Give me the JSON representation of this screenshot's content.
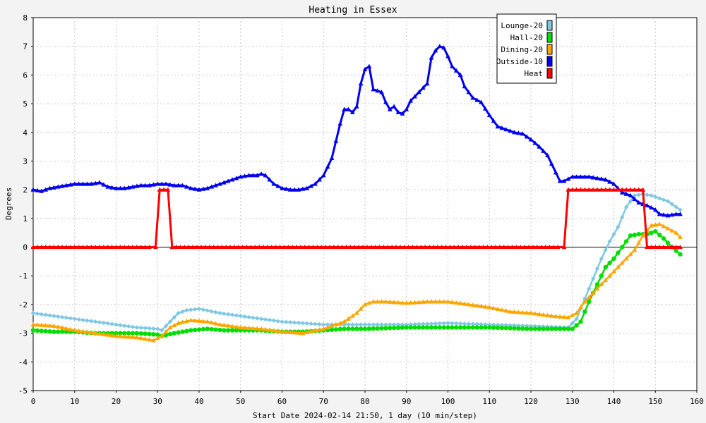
{
  "chart_data": {
    "type": "line",
    "title": "Heating in Essex",
    "xlabel": "Start Date 2024-02-14 21:50, 1 day (10 min/step)",
    "ylabel": "Degrees",
    "xlim": [
      0,
      160
    ],
    "ylim": [
      -5,
      8
    ],
    "x_ticks": [
      0,
      10,
      20,
      30,
      40,
      50,
      60,
      70,
      80,
      90,
      100,
      110,
      120,
      130,
      140,
      150,
      160
    ],
    "y_ticks": [
      -5,
      -4,
      -3,
      -2,
      -1,
      0,
      1,
      2,
      3,
      4,
      5,
      6,
      7,
      8
    ],
    "grid": true,
    "legend_position": "top-right",
    "series": [
      {
        "name": "Lounge-20",
        "color": "#7ec8e3",
        "marker": "diamond",
        "points": [
          [
            0,
            -2.3
          ],
          [
            5,
            -2.4
          ],
          [
            10,
            -2.5
          ],
          [
            15,
            -2.6
          ],
          [
            20,
            -2.7
          ],
          [
            25,
            -2.8
          ],
          [
            30,
            -2.85
          ],
          [
            31,
            -2.9
          ],
          [
            33,
            -2.6
          ],
          [
            35,
            -2.3
          ],
          [
            37,
            -2.2
          ],
          [
            40,
            -2.15
          ],
          [
            45,
            -2.3
          ],
          [
            50,
            -2.4
          ],
          [
            55,
            -2.5
          ],
          [
            60,
            -2.6
          ],
          [
            65,
            -2.65
          ],
          [
            70,
            -2.7
          ],
          [
            80,
            -2.7
          ],
          [
            90,
            -2.7
          ],
          [
            100,
            -2.65
          ],
          [
            110,
            -2.7
          ],
          [
            120,
            -2.75
          ],
          [
            129,
            -2.8
          ],
          [
            131,
            -2.5
          ],
          [
            133,
            -1.8
          ],
          [
            135,
            -1.1
          ],
          [
            137,
            -0.4
          ],
          [
            139,
            0.2
          ],
          [
            141,
            0.7
          ],
          [
            143,
            1.4
          ],
          [
            145,
            1.8
          ],
          [
            147,
            1.85
          ],
          [
            149,
            1.8
          ],
          [
            151,
            1.7
          ],
          [
            153,
            1.6
          ],
          [
            155,
            1.4
          ],
          [
            156,
            1.3
          ]
        ]
      },
      {
        "name": "Hall-20",
        "color": "#00dd00",
        "marker": "circle",
        "points": [
          [
            0,
            -2.9
          ],
          [
            5,
            -2.95
          ],
          [
            10,
            -2.95
          ],
          [
            15,
            -3.0
          ],
          [
            20,
            -3.0
          ],
          [
            25,
            -3.0
          ],
          [
            30,
            -3.05
          ],
          [
            31,
            -3.1
          ],
          [
            34,
            -3.0
          ],
          [
            38,
            -2.9
          ],
          [
            42,
            -2.85
          ],
          [
            46,
            -2.9
          ],
          [
            50,
            -2.9
          ],
          [
            55,
            -2.9
          ],
          [
            60,
            -2.95
          ],
          [
            65,
            -2.95
          ],
          [
            70,
            -2.9
          ],
          [
            75,
            -2.85
          ],
          [
            80,
            -2.85
          ],
          [
            90,
            -2.8
          ],
          [
            100,
            -2.8
          ],
          [
            110,
            -2.8
          ],
          [
            120,
            -2.85
          ],
          [
            125,
            -2.85
          ],
          [
            130,
            -2.85
          ],
          [
            132,
            -2.6
          ],
          [
            134,
            -1.9
          ],
          [
            136,
            -1.3
          ],
          [
            138,
            -0.7
          ],
          [
            140,
            -0.4
          ],
          [
            142,
            0.0
          ],
          [
            144,
            0.4
          ],
          [
            146,
            0.45
          ],
          [
            148,
            0.45
          ],
          [
            150,
            0.55
          ],
          [
            152,
            0.3
          ],
          [
            154,
            0.0
          ],
          [
            156,
            -0.25
          ]
        ]
      },
      {
        "name": "Dining-20",
        "color": "#ffa500",
        "marker": "triangle",
        "points": [
          [
            0,
            -2.7
          ],
          [
            5,
            -2.75
          ],
          [
            10,
            -2.9
          ],
          [
            15,
            -3.0
          ],
          [
            20,
            -3.1
          ],
          [
            25,
            -3.15
          ],
          [
            29,
            -3.25
          ],
          [
            31,
            -3.1
          ],
          [
            33,
            -2.8
          ],
          [
            35,
            -2.65
          ],
          [
            38,
            -2.55
          ],
          [
            42,
            -2.6
          ],
          [
            45,
            -2.7
          ],
          [
            50,
            -2.8
          ],
          [
            55,
            -2.85
          ],
          [
            60,
            -2.95
          ],
          [
            65,
            -3.0
          ],
          [
            70,
            -2.85
          ],
          [
            75,
            -2.6
          ],
          [
            78,
            -2.3
          ],
          [
            80,
            -2.0
          ],
          [
            82,
            -1.9
          ],
          [
            85,
            -1.9
          ],
          [
            90,
            -1.95
          ],
          [
            95,
            -1.9
          ],
          [
            100,
            -1.9
          ],
          [
            105,
            -2.0
          ],
          [
            110,
            -2.1
          ],
          [
            115,
            -2.25
          ],
          [
            120,
            -2.3
          ],
          [
            125,
            -2.4
          ],
          [
            129,
            -2.45
          ],
          [
            131,
            -2.3
          ],
          [
            133,
            -1.9
          ],
          [
            135,
            -1.6
          ],
          [
            137,
            -1.3
          ],
          [
            139,
            -1.0
          ],
          [
            141,
            -0.7
          ],
          [
            143,
            -0.4
          ],
          [
            145,
            -0.1
          ],
          [
            147,
            0.4
          ],
          [
            149,
            0.75
          ],
          [
            151,
            0.8
          ],
          [
            153,
            0.65
          ],
          [
            155,
            0.5
          ],
          [
            156,
            0.35
          ]
        ]
      },
      {
        "name": "Outside-10",
        "color": "#0000ee",
        "marker": "triangle",
        "points": [
          [
            0,
            2.0
          ],
          [
            2,
            1.95
          ],
          [
            4,
            2.05
          ],
          [
            6,
            2.1
          ],
          [
            8,
            2.15
          ],
          [
            10,
            2.2
          ],
          [
            12,
            2.2
          ],
          [
            14,
            2.2
          ],
          [
            16,
            2.25
          ],
          [
            18,
            2.1
          ],
          [
            20,
            2.05
          ],
          [
            22,
            2.05
          ],
          [
            24,
            2.1
          ],
          [
            26,
            2.15
          ],
          [
            28,
            2.15
          ],
          [
            30,
            2.2
          ],
          [
            32,
            2.2
          ],
          [
            34,
            2.15
          ],
          [
            36,
            2.15
          ],
          [
            38,
            2.05
          ],
          [
            40,
            2.0
          ],
          [
            42,
            2.05
          ],
          [
            44,
            2.15
          ],
          [
            46,
            2.25
          ],
          [
            48,
            2.35
          ],
          [
            50,
            2.45
          ],
          [
            52,
            2.5
          ],
          [
            54,
            2.5
          ],
          [
            55,
            2.55
          ],
          [
            56,
            2.5
          ],
          [
            58,
            2.2
          ],
          [
            60,
            2.05
          ],
          [
            62,
            2.0
          ],
          [
            64,
            2.0
          ],
          [
            66,
            2.05
          ],
          [
            68,
            2.2
          ],
          [
            70,
            2.5
          ],
          [
            72,
            3.1
          ],
          [
            73,
            3.7
          ],
          [
            74,
            4.3
          ],
          [
            75,
            4.8
          ],
          [
            76,
            4.8
          ],
          [
            77,
            4.7
          ],
          [
            78,
            4.9
          ],
          [
            79,
            5.7
          ],
          [
            80,
            6.2
          ],
          [
            81,
            6.3
          ],
          [
            82,
            5.5
          ],
          [
            84,
            5.4
          ],
          [
            85,
            5.05
          ],
          [
            86,
            4.8
          ],
          [
            87,
            4.9
          ],
          [
            88,
            4.7
          ],
          [
            89,
            4.65
          ],
          [
            90,
            4.8
          ],
          [
            91,
            5.1
          ],
          [
            93,
            5.4
          ],
          [
            95,
            5.7
          ],
          [
            96,
            6.6
          ],
          [
            97,
            6.85
          ],
          [
            98,
            7.0
          ],
          [
            99,
            6.95
          ],
          [
            100,
            6.65
          ],
          [
            101,
            6.3
          ],
          [
            103,
            6.0
          ],
          [
            104,
            5.6
          ],
          [
            106,
            5.2
          ],
          [
            108,
            5.05
          ],
          [
            110,
            4.6
          ],
          [
            112,
            4.2
          ],
          [
            114,
            4.1
          ],
          [
            116,
            4.0
          ],
          [
            118,
            3.95
          ],
          [
            120,
            3.75
          ],
          [
            122,
            3.5
          ],
          [
            124,
            3.2
          ],
          [
            126,
            2.6
          ],
          [
            127,
            2.3
          ],
          [
            128,
            2.3
          ],
          [
            130,
            2.45
          ],
          [
            132,
            2.45
          ],
          [
            134,
            2.45
          ],
          [
            136,
            2.4
          ],
          [
            138,
            2.35
          ],
          [
            140,
            2.2
          ],
          [
            142,
            1.9
          ],
          [
            144,
            1.8
          ],
          [
            146,
            1.55
          ],
          [
            148,
            1.45
          ],
          [
            150,
            1.3
          ],
          [
            151,
            1.15
          ],
          [
            153,
            1.1
          ],
          [
            155,
            1.15
          ],
          [
            156,
            1.15
          ]
        ]
      },
      {
        "name": "Heat",
        "color": "#ff0000",
        "marker": "triangle",
        "points": [
          [
            0,
            0
          ],
          [
            29.5,
            0
          ],
          [
            30.5,
            2
          ],
          [
            32.5,
            2
          ],
          [
            33.5,
            0
          ],
          [
            128,
            0
          ],
          [
            129,
            2
          ],
          [
            147,
            2
          ],
          [
            148,
            0
          ],
          [
            156,
            0
          ]
        ]
      }
    ]
  }
}
